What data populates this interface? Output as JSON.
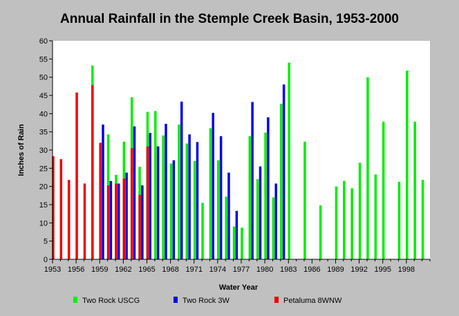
{
  "colors": {
    "background": "#c0c0c0",
    "plot_background": "#ffffff",
    "two_rock_uscg": "#00ee00",
    "two_rock_3w": "#0000ee",
    "petaluma_8wnw": "#ee0000"
  },
  "chart_data": {
    "type": "bar",
    "title": "Annual Rainfall in the Stemple Creek Basin, 1953-2000",
    "xlabel": "Water Year",
    "ylabel": "Inches of Rain",
    "ylim": [
      0,
      60
    ],
    "yticks": [
      0,
      5,
      10,
      15,
      20,
      25,
      30,
      35,
      40,
      45,
      50,
      55,
      60
    ],
    "xlim": [
      1953,
      2001
    ],
    "xticks": [
      1953,
      1956,
      1959,
      1962,
      1965,
      1968,
      1971,
      1974,
      1977,
      1980,
      1983,
      1986,
      1989,
      1992,
      1995,
      1998
    ],
    "grid": false,
    "legend_position": "bottom",
    "series": [
      {
        "name": "Two Rock USCG",
        "color_key": "two_rock_uscg",
        "points": [
          {
            "x": 1958,
            "y": 53.2
          },
          {
            "x": 1959,
            "y": 25.8
          },
          {
            "x": 1960,
            "y": 34.3
          },
          {
            "x": 1961,
            "y": 23.2
          },
          {
            "x": 1962,
            "y": 32.3
          },
          {
            "x": 1963,
            "y": 44.5
          },
          {
            "x": 1964,
            "y": 25.4
          },
          {
            "x": 1965,
            "y": 40.5
          },
          {
            "x": 1966,
            "y": 40.7
          },
          {
            "x": 1967,
            "y": 34.0
          },
          {
            "x": 1968,
            "y": 26.3
          },
          {
            "x": 1969,
            "y": 37.0
          },
          {
            "x": 1970,
            "y": 31.8
          },
          {
            "x": 1971,
            "y": 27.0
          },
          {
            "x": 1972,
            "y": 15.5
          },
          {
            "x": 1973,
            "y": 36.0
          },
          {
            "x": 1974,
            "y": 27.2
          },
          {
            "x": 1975,
            "y": 17.2
          },
          {
            "x": 1976,
            "y": 9.0
          },
          {
            "x": 1977,
            "y": 8.7
          },
          {
            "x": 1978,
            "y": 33.8
          },
          {
            "x": 1979,
            "y": 22.0
          },
          {
            "x": 1980,
            "y": 34.8
          },
          {
            "x": 1981,
            "y": 17.0
          },
          {
            "x": 1982,
            "y": 42.7
          },
          {
            "x": 1983,
            "y": 54.0
          },
          {
            "x": 1985,
            "y": 32.3
          },
          {
            "x": 1987,
            "y": 14.8
          },
          {
            "x": 1989,
            "y": 20.0
          },
          {
            "x": 1990,
            "y": 21.5
          },
          {
            "x": 1991,
            "y": 19.5
          },
          {
            "x": 1992,
            "y": 26.5
          },
          {
            "x": 1993,
            "y": 50.0
          },
          {
            "x": 1994,
            "y": 23.3
          },
          {
            "x": 1995,
            "y": 37.8
          },
          {
            "x": 1997,
            "y": 21.3
          },
          {
            "x": 1998,
            "y": 51.8
          },
          {
            "x": 1999,
            "y": 37.8
          },
          {
            "x": 2000,
            "y": 21.8
          }
        ]
      },
      {
        "name": "Two Rock 3W",
        "color_key": "two_rock_3w",
        "points": [
          {
            "x": 1959,
            "y": 37.0
          },
          {
            "x": 1960,
            "y": 21.5
          },
          {
            "x": 1961,
            "y": 20.8
          },
          {
            "x": 1962,
            "y": 23.8
          },
          {
            "x": 1963,
            "y": 36.5
          },
          {
            "x": 1964,
            "y": 20.3
          },
          {
            "x": 1965,
            "y": 34.7
          },
          {
            "x": 1966,
            "y": 31.0
          },
          {
            "x": 1967,
            "y": 37.2
          },
          {
            "x": 1968,
            "y": 27.2
          },
          {
            "x": 1969,
            "y": 43.3
          },
          {
            "x": 1970,
            "y": 34.3
          },
          {
            "x": 1971,
            "y": 32.2
          },
          {
            "x": 1973,
            "y": 40.2
          },
          {
            "x": 1974,
            "y": 33.8
          },
          {
            "x": 1975,
            "y": 23.8
          },
          {
            "x": 1976,
            "y": 13.3
          },
          {
            "x": 1978,
            "y": 43.2
          },
          {
            "x": 1979,
            "y": 25.5
          },
          {
            "x": 1980,
            "y": 39.0
          },
          {
            "x": 1981,
            "y": 20.8
          },
          {
            "x": 1982,
            "y": 48.0
          }
        ]
      },
      {
        "name": "Petaluma 8WNW",
        "color_key": "petaluma_8wnw",
        "points": [
          {
            "x": 1953,
            "y": 28.3
          },
          {
            "x": 1954,
            "y": 27.5
          },
          {
            "x": 1955,
            "y": 21.8
          },
          {
            "x": 1956,
            "y": 45.8
          },
          {
            "x": 1957,
            "y": 20.8
          },
          {
            "x": 1958,
            "y": 47.8
          },
          {
            "x": 1959,
            "y": 32.0
          },
          {
            "x": 1960,
            "y": 20.3
          },
          {
            "x": 1961,
            "y": 20.8
          },
          {
            "x": 1962,
            "y": 22.2
          },
          {
            "x": 1963,
            "y": 30.5
          },
          {
            "x": 1964,
            "y": 17.7
          },
          {
            "x": 1965,
            "y": 31.0
          }
        ]
      }
    ]
  }
}
